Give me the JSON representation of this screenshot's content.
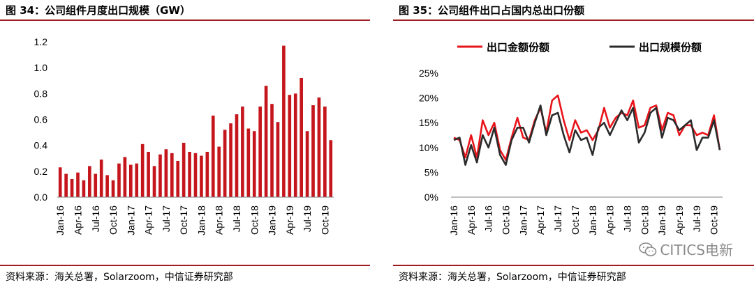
{
  "colors": {
    "bar": "#c4161c",
    "line_export_value": "#e8141b",
    "line_export_scale": "#2b2b2b",
    "rule": "#a01c20"
  },
  "left": {
    "title": "图 34：公司组件月度出口规模（GW）",
    "source": "资料来源：海关总署，Solarzoom，中信证券研究部"
  },
  "right": {
    "title": "图 35：公司组件出口占国内总出口份额",
    "source": "资料来源：海关总署，Solarzoom，中信证券研究部",
    "watermark": "CITICS电新"
  },
  "chart_data": [
    {
      "type": "bar",
      "title": "图 34：公司组件月度出口规模（GW）",
      "xlabel": "",
      "ylabel": "",
      "ylim": [
        0,
        1.2
      ],
      "yticks": [
        "0.0",
        "0.2",
        "0.4",
        "0.6",
        "0.8",
        "1.0",
        "1.2"
      ],
      "xtick_labels": [
        "Jan-16",
        "Apr-16",
        "Jul-16",
        "Oct-16",
        "Jan-17",
        "Apr-17",
        "Jul-17",
        "Oct-17",
        "Jan-18",
        "Apr-18",
        "Jul-18",
        "Oct-18",
        "Jan-19",
        "Apr-19",
        "Jul-19",
        "Oct-19"
      ],
      "categories": [
        "Jan-16",
        "Feb-16",
        "Mar-16",
        "Apr-16",
        "May-16",
        "Jun-16",
        "Jul-16",
        "Aug-16",
        "Sep-16",
        "Oct-16",
        "Nov-16",
        "Dec-16",
        "Jan-17",
        "Feb-17",
        "Mar-17",
        "Apr-17",
        "May-17",
        "Jun-17",
        "Jul-17",
        "Aug-17",
        "Sep-17",
        "Oct-17",
        "Nov-17",
        "Dec-17",
        "Jan-18",
        "Feb-18",
        "Mar-18",
        "Apr-18",
        "May-18",
        "Jun-18",
        "Jul-18",
        "Aug-18",
        "Sep-18",
        "Oct-18",
        "Nov-18",
        "Dec-18",
        "Jan-19",
        "Feb-19",
        "Mar-19",
        "Apr-19",
        "May-19",
        "Jun-19",
        "Jul-19",
        "Aug-19",
        "Sep-19",
        "Oct-19",
        "Nov-19"
      ],
      "values": [
        0.23,
        0.18,
        0.14,
        0.19,
        0.13,
        0.24,
        0.18,
        0.29,
        0.17,
        0.13,
        0.26,
        0.31,
        0.25,
        0.26,
        0.41,
        0.35,
        0.24,
        0.33,
        0.37,
        0.34,
        0.28,
        0.42,
        0.35,
        0.34,
        0.32,
        0.35,
        0.63,
        0.39,
        0.52,
        0.57,
        0.64,
        0.7,
        0.53,
        0.51,
        0.7,
        0.86,
        0.72,
        0.58,
        1.17,
        0.79,
        0.8,
        0.92,
        0.51,
        0.71,
        0.77,
        0.7,
        0.44
      ]
    },
    {
      "type": "line",
      "title": "图 35：公司组件出口占国内总出口份额",
      "ylim": [
        0,
        25
      ],
      "yticks": [
        "0%",
        "5%",
        "10%",
        "15%",
        "20%",
        "25%"
      ],
      "xtick_labels": [
        "Jan-16",
        "Apr-16",
        "Jul-16",
        "Oct-16",
        "Jan-17",
        "Apr-17",
        "Jul-17",
        "Oct-17",
        "Jan-18",
        "Apr-18",
        "Jul-18",
        "Oct-18",
        "Jan-19",
        "Apr-19",
        "Jul-19",
        "Oct-19"
      ],
      "legend_position": "top",
      "series": [
        {
          "name": "出口金额份额",
          "color": "#e8141b",
          "values": [
            12.0,
            11.5,
            8.0,
            12.5,
            8.0,
            15.5,
            12.5,
            15.0,
            9.5,
            7.5,
            12.0,
            16.0,
            12.0,
            11.5,
            15.5,
            18.0,
            13.0,
            19.5,
            20.5,
            15.5,
            11.5,
            15.5,
            13.0,
            13.5,
            11.5,
            13.5,
            18.0,
            14.0,
            16.0,
            17.0,
            16.5,
            19.5,
            14.0,
            14.5,
            18.0,
            18.5,
            13.5,
            17.0,
            16.5,
            12.5,
            14.5,
            14.5,
            12.5,
            13.0,
            12.5,
            16.5,
            9.5
          ]
        },
        {
          "name": "出口规模份额",
          "color": "#2b2b2b",
          "values": [
            11.5,
            12.0,
            6.5,
            10.5,
            7.0,
            12.5,
            10.0,
            14.0,
            8.5,
            6.5,
            11.5,
            14.0,
            14.0,
            11.0,
            15.0,
            18.5,
            12.5,
            16.5,
            17.0,
            12.5,
            9.0,
            13.5,
            11.5,
            12.0,
            8.5,
            14.0,
            15.0,
            12.5,
            15.0,
            17.5,
            15.5,
            18.0,
            11.0,
            13.0,
            17.0,
            18.0,
            12.0,
            16.0,
            15.5,
            13.5,
            14.5,
            15.5,
            9.5,
            12.0,
            12.0,
            15.5,
            9.5
          ]
        }
      ]
    }
  ]
}
